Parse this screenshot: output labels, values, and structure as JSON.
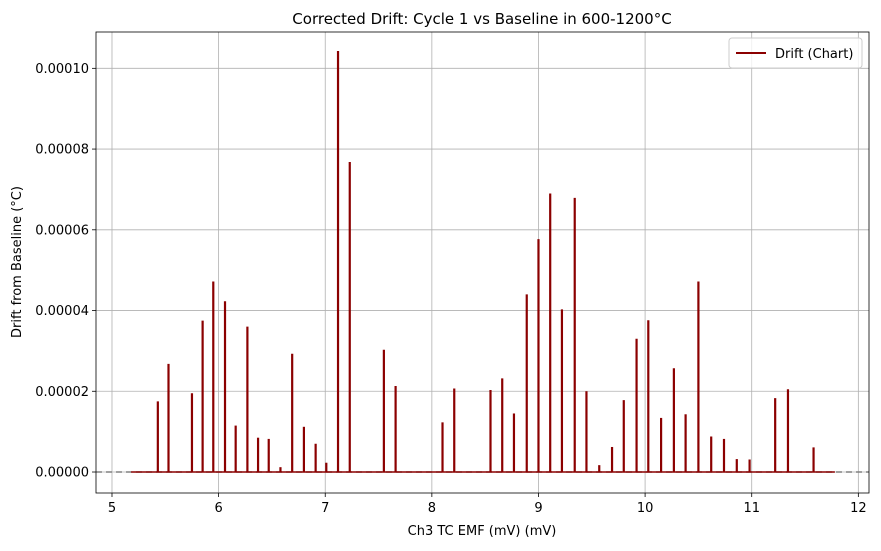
{
  "chart_data": {
    "type": "line",
    "title": "Corrected Drift: Cycle 1 vs Baseline in 600-1200°C",
    "xlabel": "Ch3 TC EMF (mV) (mV)",
    "ylabel": "Drift from Baseline (°C)",
    "xlim": [
      4.85,
      12.1
    ],
    "ylim": [
      -5.2e-06,
      0.000109
    ],
    "xticks": [
      5,
      6,
      7,
      8,
      9,
      10,
      11,
      12
    ],
    "xtick_labels": [
      "5",
      "6",
      "7",
      "8",
      "9",
      "10",
      "11",
      "12"
    ],
    "yticks": [
      0,
      2e-05,
      4e-05,
      6e-05,
      8e-05,
      0.0001
    ],
    "ytick_labels": [
      "0.00000",
      "0.00002",
      "0.00004",
      "0.00006",
      "0.00008",
      "0.00010"
    ],
    "grid": true,
    "legend_position": "top-right",
    "baseline": {
      "y": 0,
      "style": "dashed",
      "color": "#808080"
    },
    "x_range": [
      5.18,
      11.78
    ],
    "series": [
      {
        "name": "Drift (Chart)",
        "color": "#8b0000",
        "x": [
          5.43,
          5.53,
          5.75,
          5.85,
          5.95,
          6.06,
          6.16,
          6.27,
          6.37,
          6.47,
          6.58,
          6.69,
          6.8,
          6.91,
          7.01,
          7.12,
          7.23,
          7.55,
          7.66,
          8.1,
          8.21,
          8.55,
          8.66,
          8.77,
          8.89,
          9.0,
          9.11,
          9.22,
          9.34,
          9.45,
          9.57,
          9.69,
          9.8,
          9.92,
          10.03,
          10.15,
          10.27,
          10.38,
          10.5,
          10.62,
          10.74,
          10.86,
          10.98,
          11.22,
          11.34,
          11.58
        ],
        "values": [
          1.75e-05,
          2.68e-05,
          1.95e-05,
          3.75e-05,
          4.72e-05,
          4.23e-05,
          1.15e-05,
          3.6e-05,
          8.5e-06,
          8.2e-06,
          1.2e-06,
          2.93e-05,
          1.12e-05,
          7e-06,
          2.3e-06,
          0.0001043,
          7.68e-05,
          3.03e-05,
          2.13e-05,
          1.23e-05,
          2.07e-05,
          2.03e-05,
          2.32e-05,
          1.45e-05,
          4.4e-05,
          5.77e-05,
          6.9e-05,
          4.03e-05,
          6.79e-05,
          2e-05,
          1.7e-06,
          6.2e-06,
          1.78e-05,
          3.3e-05,
          3.76e-05,
          1.34e-05,
          2.57e-05,
          1.43e-05,
          4.72e-05,
          8.8e-06,
          8.2e-06,
          3.2e-06,
          3.1e-06,
          1.83e-05,
          2.05e-05,
          6.1e-06
        ]
      }
    ]
  }
}
